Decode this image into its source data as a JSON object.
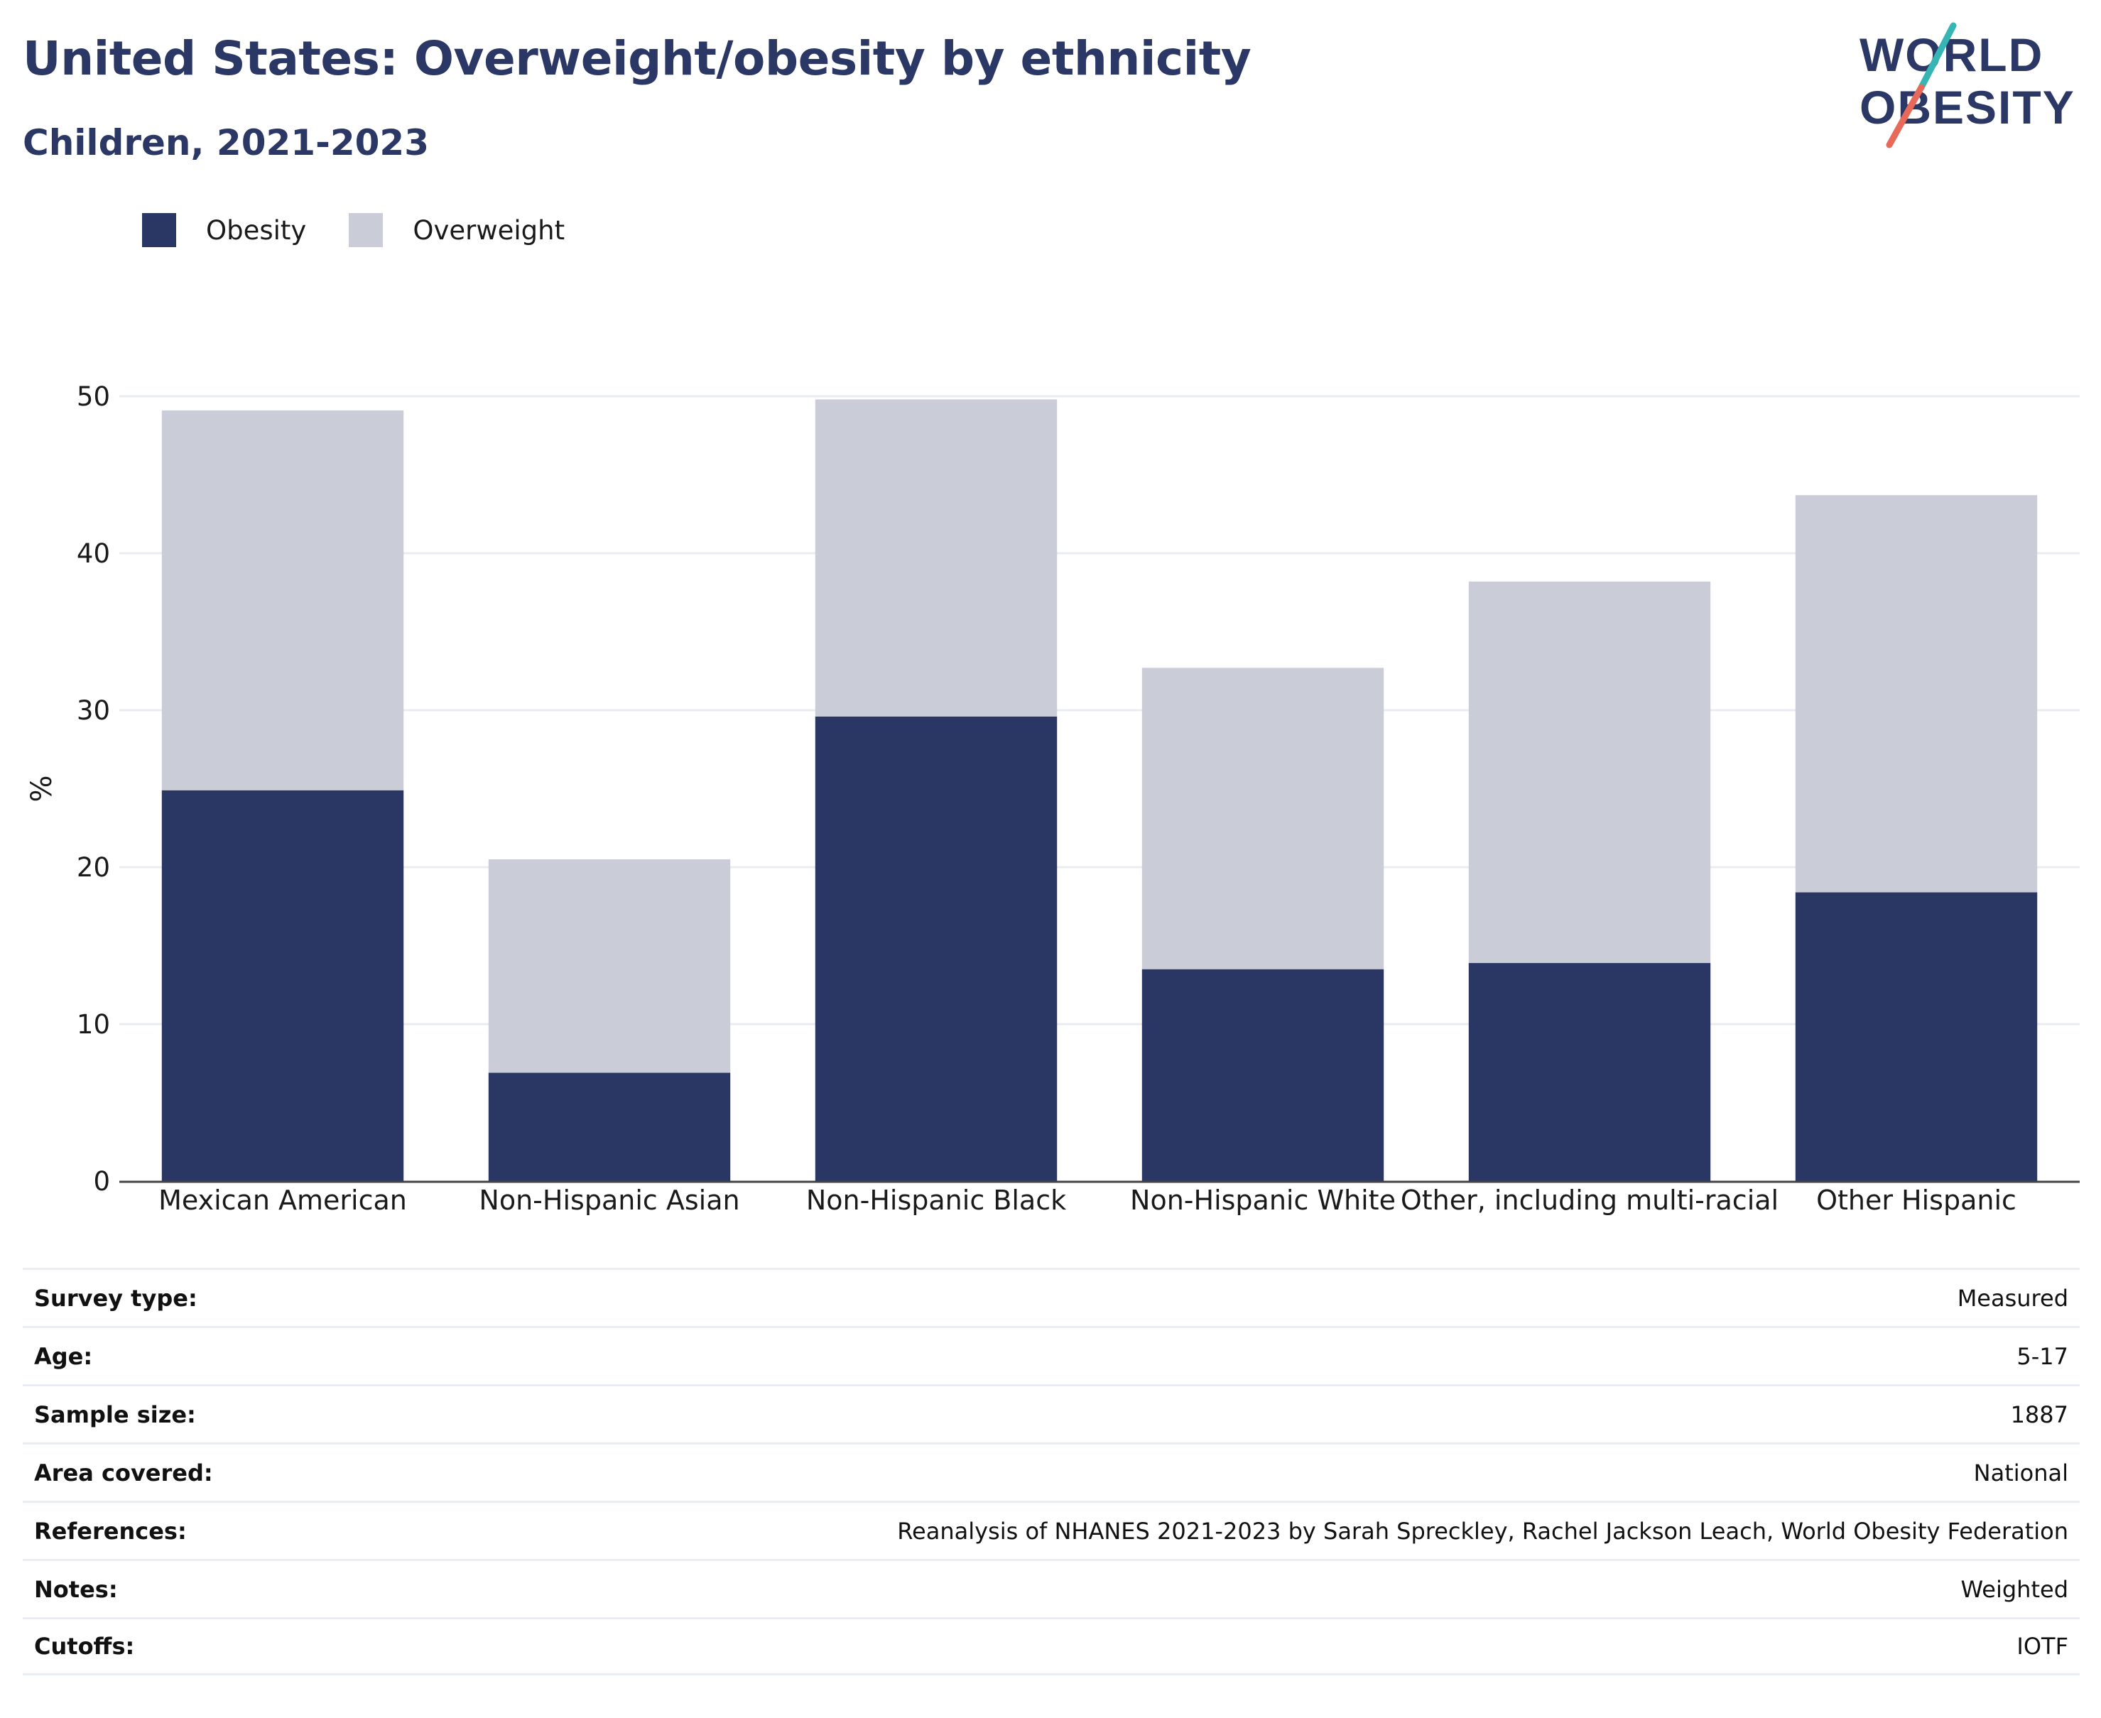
{
  "title": "United States: Overweight/obesity by ethnicity",
  "subtitle": "Children, 2021-2023",
  "logo": {
    "line1": "WORLD",
    "line2": "OBESITY",
    "colors": {
      "text": "#2b3764",
      "slash_top": "#35b6b4",
      "slash_bottom": "#e8695a"
    }
  },
  "legend": [
    {
      "label": "Obesity",
      "color": "#2a3664"
    },
    {
      "label": "Overweight",
      "color": "#cacdd8"
    }
  ],
  "chart_data": {
    "type": "bar",
    "stacked": true,
    "categories": [
      "Mexican American",
      "Non-Hispanic Asian",
      "Non-Hispanic Black",
      "Non-Hispanic White",
      "Other, including multi-racial",
      "Other Hispanic"
    ],
    "series": [
      {
        "name": "Obesity",
        "values": [
          24.9,
          6.9,
          29.6,
          13.5,
          13.9,
          18.4
        ],
        "color": "#2a3664"
      },
      {
        "name": "Overweight",
        "values": [
          24.2,
          13.6,
          20.2,
          19.2,
          24.3,
          25.3
        ],
        "color": "#cacdd8"
      }
    ],
    "ylabel": "%",
    "ylim": [
      0,
      50
    ],
    "yticks": [
      0,
      10,
      20,
      30,
      40,
      50
    ],
    "grid": true,
    "legend_position": "top-left"
  },
  "metadata": [
    {
      "key": "Survey type:",
      "value": "Measured"
    },
    {
      "key": "Age:",
      "value": "5-17"
    },
    {
      "key": "Sample size:",
      "value": "1887"
    },
    {
      "key": "Area covered:",
      "value": "National"
    },
    {
      "key": "References:",
      "value": "Reanalysis of NHANES 2021-2023 by Sarah Spreckley, Rachel Jackson Leach, World Obesity Federation"
    },
    {
      "key": "Notes:",
      "value": "Weighted"
    },
    {
      "key": "Cutoffs:",
      "value": "IOTF"
    }
  ]
}
